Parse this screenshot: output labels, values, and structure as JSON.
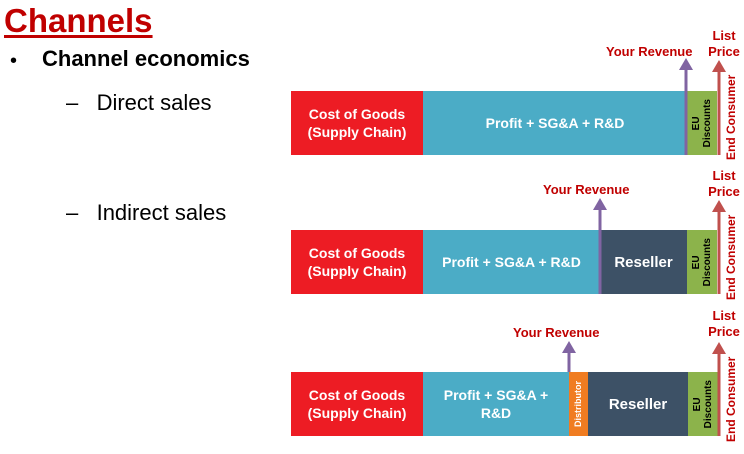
{
  "title": "Channels",
  "bullet": "Channel economics",
  "subs": {
    "direct": "Direct sales",
    "indirect": "Indirect sales"
  },
  "labels": {
    "cogs": "Cost of Goods (Supply Chain)",
    "profit": "Profit + SG&A + R&D",
    "reseller": "Reseller",
    "distributor": "Distributor",
    "eu": "EU",
    "discounts": "Discounts",
    "your_revenue": "Your Revenue",
    "list": "List",
    "price": "Price",
    "end_consumer": "End Consumer"
  },
  "colors": {
    "cogs": "#ed1c24",
    "profit": "#4bacc6",
    "reseller": "#3d5166",
    "discounts": "#8cb34b",
    "distributor": "#f07c21",
    "revenue_arrow": "#8064a2",
    "price_arrow": "#c0504d"
  }
}
